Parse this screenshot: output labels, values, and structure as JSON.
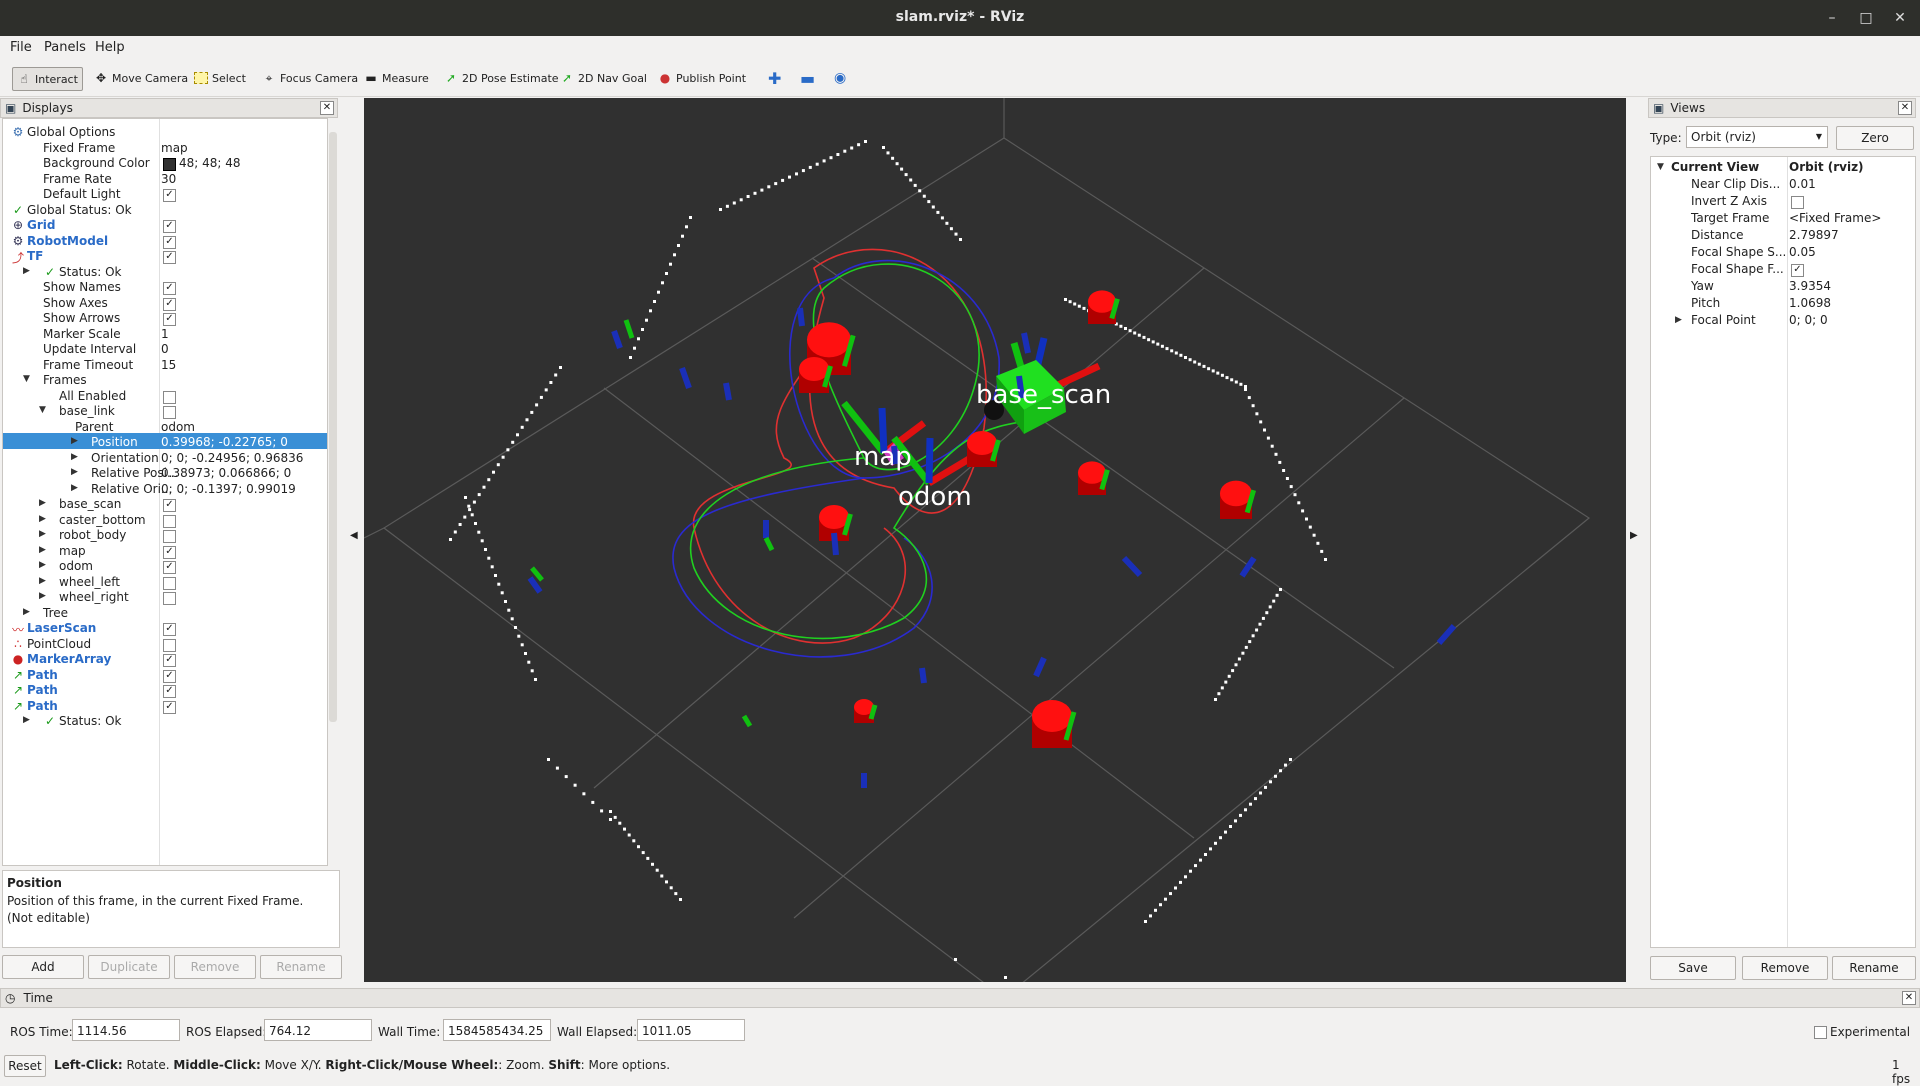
{
  "window": {
    "title": "slam.rviz* - RViz"
  },
  "menu": [
    "File",
    "Panels",
    "Help"
  ],
  "toolbar": {
    "interact": "Interact",
    "move_camera": "Move Camera",
    "select": "Select",
    "focus_camera": "Focus Camera",
    "measure": "Measure",
    "pose_estimate": "2D Pose Estimate",
    "nav_goal": "2D Nav Goal",
    "publish_point": "Publish Point"
  },
  "displays": {
    "title": "Displays",
    "rows": [
      {
        "label": "Global Options",
        "value": "",
        "check": null
      },
      {
        "label": "Fixed Frame",
        "value": "map",
        "check": null
      },
      {
        "label": "Background Color",
        "value": "48; 48; 48",
        "check": null
      },
      {
        "label": "Frame Rate",
        "value": "30",
        "check": null
      },
      {
        "label": "Default Light",
        "value": "",
        "check": true
      },
      {
        "label": "Global Status: Ok",
        "value": "",
        "check": null
      },
      {
        "label": "Grid",
        "value": "",
        "check": true
      },
      {
        "label": "RobotModel",
        "value": "",
        "check": true
      },
      {
        "label": "TF",
        "value": "",
        "check": true
      },
      {
        "label": "Status: Ok",
        "value": "",
        "check": null
      },
      {
        "label": "Show Names",
        "value": "",
        "check": true
      },
      {
        "label": "Show Axes",
        "value": "",
        "check": true
      },
      {
        "label": "Show Arrows",
        "value": "",
        "check": true
      },
      {
        "label": "Marker Scale",
        "value": "1",
        "check": null
      },
      {
        "label": "Update Interval",
        "value": "0",
        "check": null
      },
      {
        "label": "Frame Timeout",
        "value": "15",
        "check": null
      },
      {
        "label": "Frames",
        "value": "",
        "check": null
      },
      {
        "label": "All Enabled",
        "value": "",
        "check": false
      },
      {
        "label": "base_link",
        "value": "",
        "check": false
      },
      {
        "label": "Parent",
        "value": "odom",
        "check": null
      },
      {
        "label": "Position",
        "value": "0.39968; -0.22765; 0",
        "check": null
      },
      {
        "label": "Orientation",
        "value": "0; 0; -0.24956; 0.96836",
        "check": null
      },
      {
        "label": "Relative Posi...",
        "value": "0.38973; 0.066866; 0",
        "check": null
      },
      {
        "label": "Relative Ori...",
        "value": "0; 0; -0.1397; 0.99019",
        "check": null
      },
      {
        "label": "base_scan",
        "value": "",
        "check": true
      },
      {
        "label": "caster_bottom",
        "value": "",
        "check": false
      },
      {
        "label": "robot_body",
        "value": "",
        "check": false
      },
      {
        "label": "map",
        "value": "",
        "check": true
      },
      {
        "label": "odom",
        "value": "",
        "check": true
      },
      {
        "label": "wheel_left",
        "value": "",
        "check": false
      },
      {
        "label": "wheel_right",
        "value": "",
        "check": false
      },
      {
        "label": "Tree",
        "value": "",
        "check": null
      },
      {
        "label": "LaserScan",
        "value": "",
        "check": true
      },
      {
        "label": "PointCloud",
        "value": "",
        "check": false
      },
      {
        "label": "MarkerArray",
        "value": "",
        "check": true
      },
      {
        "label": "Path",
        "value": "",
        "check": true
      },
      {
        "label": "Path",
        "value": "",
        "check": true
      },
      {
        "label": "Path",
        "value": "",
        "check": true
      },
      {
        "label": "Status: Ok",
        "value": "",
        "check": null
      }
    ],
    "desc_title": "Position",
    "desc_text": "Position of this frame, in the current Fixed Frame. (Not editable)",
    "buttons": [
      "Add",
      "Duplicate",
      "Remove",
      "Rename"
    ]
  },
  "viewport": {
    "labels": {
      "base_scan": "base_scan",
      "map": "map",
      "odom": "odom"
    },
    "background": "#303030"
  },
  "views": {
    "title": "Views",
    "type_label": "Type:",
    "type_value": "Orbit (rviz)",
    "zero": "Zero",
    "rows": [
      {
        "label": "Current View",
        "value": "Orbit (rviz)"
      },
      {
        "label": "Near Clip Dis...",
        "value": "0.01"
      },
      {
        "label": "Invert Z Axis",
        "value": ""
      },
      {
        "label": "Target Frame",
        "value": "<Fixed Frame>"
      },
      {
        "label": "Distance",
        "value": "2.79897"
      },
      {
        "label": "Focal Shape S...",
        "value": "0.05"
      },
      {
        "label": "Focal Shape F...",
        "value": ""
      },
      {
        "label": "Yaw",
        "value": "3.9354"
      },
      {
        "label": "Pitch",
        "value": "1.0698"
      },
      {
        "label": "Focal Point",
        "value": "0; 0; 0"
      }
    ],
    "buttons": [
      "Save",
      "Remove",
      "Rename"
    ]
  },
  "time": {
    "title": "Time",
    "ros_time_label": "ROS Time:",
    "ros_time": "1114.56",
    "ros_elapsed_label": "ROS Elapsed:",
    "ros_elapsed": "764.12",
    "wall_time_label": "Wall Time:",
    "wall_time": "1584585434.25",
    "wall_elapsed_label": "Wall Elapsed:",
    "wall_elapsed": "1011.05",
    "experimental": "Experimental",
    "reset": "Reset",
    "hint_1": "Left-Click:",
    "hint_2": " Rotate. ",
    "hint_3": "Middle-Click:",
    "hint_4": " Move X/Y. ",
    "hint_5": "Right-Click/Mouse Wheel:",
    "hint_6": ": Zoom. ",
    "hint_7": "Shift",
    "hint_8": ": More options.",
    "fps": "1 fps"
  }
}
